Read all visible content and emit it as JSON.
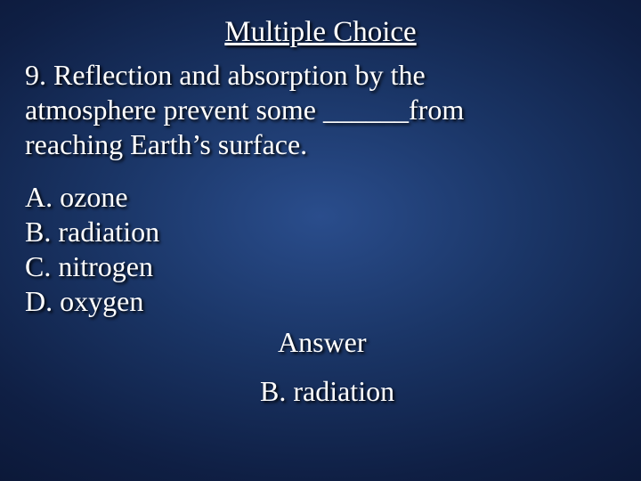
{
  "title": "Multiple Choice",
  "question_number": "9.",
  "question_text_line1": "9. Reflection and absorption by the",
  "question_text_line2": "atmosphere prevent some ______from",
  "question_text_line3": "reaching Earth’s surface.",
  "choices": {
    "a": "A. ozone",
    "b": "B. radiation",
    "c": "C. nitrogen",
    "d": "D. oxygen"
  },
  "answer_label": "Answer",
  "answer_value": "B. radiation",
  "style": {
    "text_color": "#ffffff",
    "shadow_color": "#000000",
    "background_gradient_center": "#2a4d8c",
    "background_gradient_mid": "#0f1f44",
    "background_gradient_edge": "#050a1f",
    "title_fontsize": 33,
    "body_fontsize": 32,
    "font_family": "Times New Roman"
  }
}
